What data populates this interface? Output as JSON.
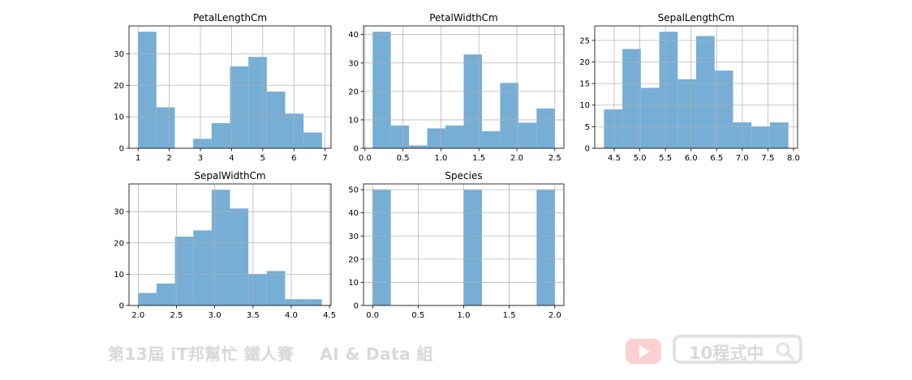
{
  "chart_data": [
    {
      "type": "bar",
      "title": "PetalLengthCm",
      "bin_edges": [
        1.0,
        1.59,
        2.18,
        2.77,
        3.36,
        3.95,
        4.54,
        5.13,
        5.72,
        6.31,
        6.9
      ],
      "values": [
        37,
        13,
        0,
        3,
        8,
        26,
        29,
        18,
        11,
        5
      ],
      "xlim": [
        0.71,
        7.19
      ],
      "ylim": [
        0,
        38.85
      ],
      "xticks": [
        1,
        2,
        3,
        4,
        5,
        6,
        7
      ],
      "xtick_labels": [
        "1",
        "2",
        "3",
        "4",
        "5",
        "6",
        "7"
      ],
      "yticks": [
        0,
        10,
        20,
        30
      ],
      "ytick_labels": [
        "0",
        "10",
        "20",
        "30"
      ],
      "grid": true,
      "color": "#76aed6"
    },
    {
      "type": "bar",
      "title": "PetalWidthCm",
      "bin_edges": [
        0.1,
        0.34,
        0.58,
        0.82,
        1.06,
        1.3,
        1.54,
        1.78,
        2.02,
        2.26,
        2.5
      ],
      "values": [
        41,
        8,
        1,
        7,
        8,
        33,
        6,
        23,
        9,
        14
      ],
      "xlim": [
        -0.02,
        2.62
      ],
      "ylim": [
        0,
        43.05
      ],
      "xticks": [
        0.0,
        0.5,
        1.0,
        1.5,
        2.0,
        2.5
      ],
      "xtick_labels": [
        "0.0",
        "0.5",
        "1.0",
        "1.5",
        "2.0",
        "2.5"
      ],
      "yticks": [
        0,
        10,
        20,
        30,
        40
      ],
      "ytick_labels": [
        "0",
        "10",
        "20",
        "30",
        "40"
      ],
      "grid": true,
      "color": "#76aed6"
    },
    {
      "type": "bar",
      "title": "SepalLengthCm",
      "bin_edges": [
        4.3,
        4.66,
        5.02,
        5.38,
        5.74,
        6.1,
        6.46,
        6.82,
        7.18,
        7.54,
        7.9
      ],
      "values": [
        9,
        23,
        14,
        27,
        16,
        26,
        18,
        6,
        5,
        6
      ],
      "xlim": [
        4.12,
        8.08
      ],
      "ylim": [
        0,
        28.35
      ],
      "xticks": [
        4.5,
        5.0,
        5.5,
        6.0,
        6.5,
        7.0,
        7.5,
        8.0
      ],
      "xtick_labels": [
        "4.5",
        "5.0",
        "5.5",
        "6.0",
        "6.5",
        "7.0",
        "7.5",
        "8.0"
      ],
      "yticks": [
        0,
        5,
        10,
        15,
        20,
        25
      ],
      "ytick_labels": [
        "0",
        "5",
        "10",
        "15",
        "20",
        "25"
      ],
      "grid": true,
      "color": "#76aed6"
    },
    {
      "type": "bar",
      "title": "SepalWidthCm",
      "bin_edges": [
        2.0,
        2.24,
        2.48,
        2.72,
        2.96,
        3.2,
        3.44,
        3.68,
        3.92,
        4.16,
        4.4
      ],
      "values": [
        4,
        7,
        22,
        24,
        37,
        31,
        10,
        11,
        2,
        2
      ],
      "xlim": [
        1.88,
        4.52
      ],
      "ylim": [
        0,
        38.85
      ],
      "xticks": [
        2.0,
        2.5,
        3.0,
        3.5,
        4.0,
        4.5
      ],
      "xtick_labels": [
        "2.0",
        "2.5",
        "3.0",
        "3.5",
        "4.0",
        "4.5"
      ],
      "yticks": [
        0,
        10,
        20,
        30
      ],
      "ytick_labels": [
        "0",
        "10",
        "20",
        "30"
      ],
      "grid": true,
      "color": "#76aed6"
    },
    {
      "type": "bar",
      "title": "Species",
      "bin_edges": [
        0.0,
        0.2,
        0.4,
        0.6,
        0.8,
        1.0,
        1.2,
        1.4,
        1.6,
        1.8,
        2.0
      ],
      "values": [
        50,
        0,
        0,
        0,
        0,
        50,
        0,
        0,
        0,
        50
      ],
      "xlim": [
        -0.1,
        2.1
      ],
      "ylim": [
        0,
        52.5
      ],
      "xticks": [
        0.0,
        0.5,
        1.0,
        1.5,
        2.0
      ],
      "xtick_labels": [
        "0.0",
        "0.5",
        "1.0",
        "1.5",
        "2.0"
      ],
      "yticks": [
        0,
        10,
        20,
        30,
        40,
        50
      ],
      "ytick_labels": [
        "0",
        "10",
        "20",
        "30",
        "40",
        "50"
      ],
      "grid": true,
      "color": "#76aed6"
    }
  ],
  "footer": {
    "left_text": "第13屆 iT邦幫忙 鐵人賽",
    "right_text": "AI & Data 組",
    "search_text": "10程式中"
  },
  "icons": {
    "youtube": "youtube-icon",
    "search": "search-icon"
  }
}
